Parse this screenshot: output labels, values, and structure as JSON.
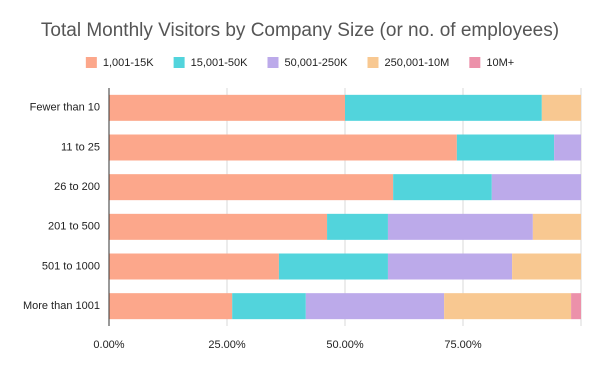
{
  "chart_data": {
    "type": "stacked-bar-horizontal",
    "title": "Total Monthly Visitors by Company Size (or no. of employees)",
    "categories": [
      "Fewer than 10",
      "11 to 25",
      "26 to 200",
      "201 to 500",
      "501 to 1000",
      "More than 1001"
    ],
    "series": [
      {
        "name": "1,001-15K",
        "color": "#fca78b",
        "values": [
          50.0,
          73.7,
          60.2,
          46.2,
          36.0,
          26.1
        ]
      },
      {
        "name": "15,001-50K",
        "color": "#52d4dc",
        "values": [
          41.7,
          20.6,
          20.9,
          12.9,
          23.1,
          15.6
        ]
      },
      {
        "name": "50,001-250K",
        "color": "#bcaaea",
        "values": [
          0,
          5.7,
          18.9,
          30.7,
          26.3,
          29.3
        ]
      },
      {
        "name": "250,001-10M",
        "color": "#f8c891",
        "values": [
          8.3,
          0,
          0,
          10.2,
          14.6,
          26.9
        ]
      },
      {
        "name": "10M+",
        "color": "#ec91aa",
        "values": [
          0,
          0,
          0,
          0,
          0,
          2.1
        ]
      }
    ],
    "xlim": [
      0,
      100
    ],
    "xticks": [
      {
        "value": 0,
        "label": "0.00%"
      },
      {
        "value": 25,
        "label": "25.00%"
      },
      {
        "value": 50,
        "label": "50.00%"
      },
      {
        "value": 75,
        "label": "75.00%"
      }
    ],
    "grid": true,
    "legend": "top"
  }
}
